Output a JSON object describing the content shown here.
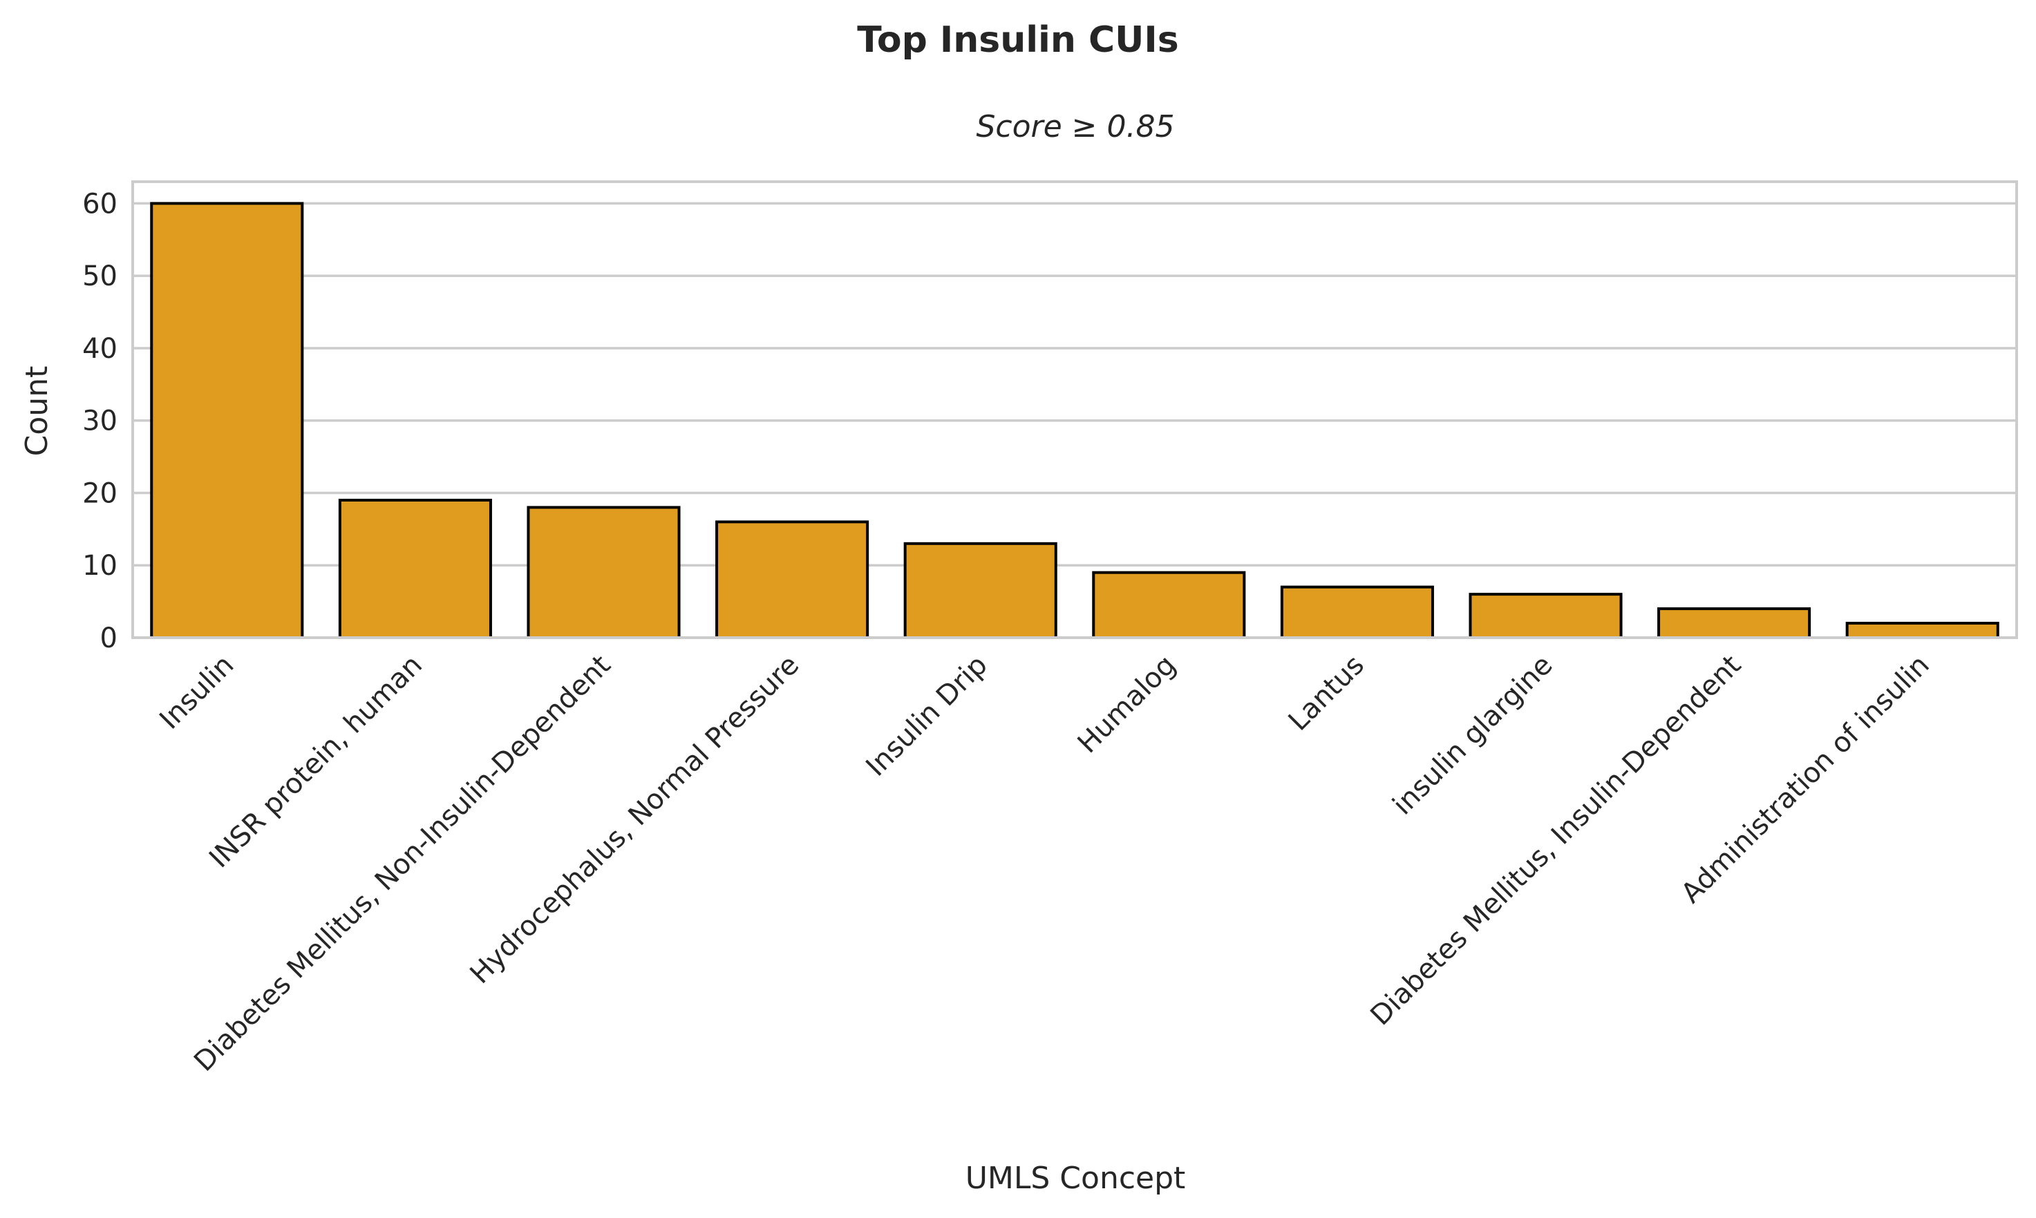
{
  "chart_data": {
    "type": "bar",
    "title": "Top Insulin CUIs",
    "subtitle": "Score ≥ 0.85",
    "xlabel": "UMLS Concept",
    "ylabel": "Count",
    "categories": [
      "Insulin",
      "INSR protein, human",
      "Diabetes Mellitus, Non-Insulin-Dependent",
      "Hydrocephalus, Normal Pressure",
      "Insulin Drip",
      "Humalog",
      "Lantus",
      "insulin glargine",
      "Diabetes Mellitus, Insulin-Dependent",
      "Administration of insulin"
    ],
    "values": [
      60,
      19,
      18,
      16,
      13,
      9,
      7,
      6,
      4,
      2
    ],
    "ylim": [
      0,
      63
    ],
    "yticks": [
      0,
      10,
      20,
      30,
      40,
      50,
      60
    ],
    "grid": "horizontal",
    "bar_color": "#E09C1F",
    "bar_edge_color": "#000000"
  }
}
